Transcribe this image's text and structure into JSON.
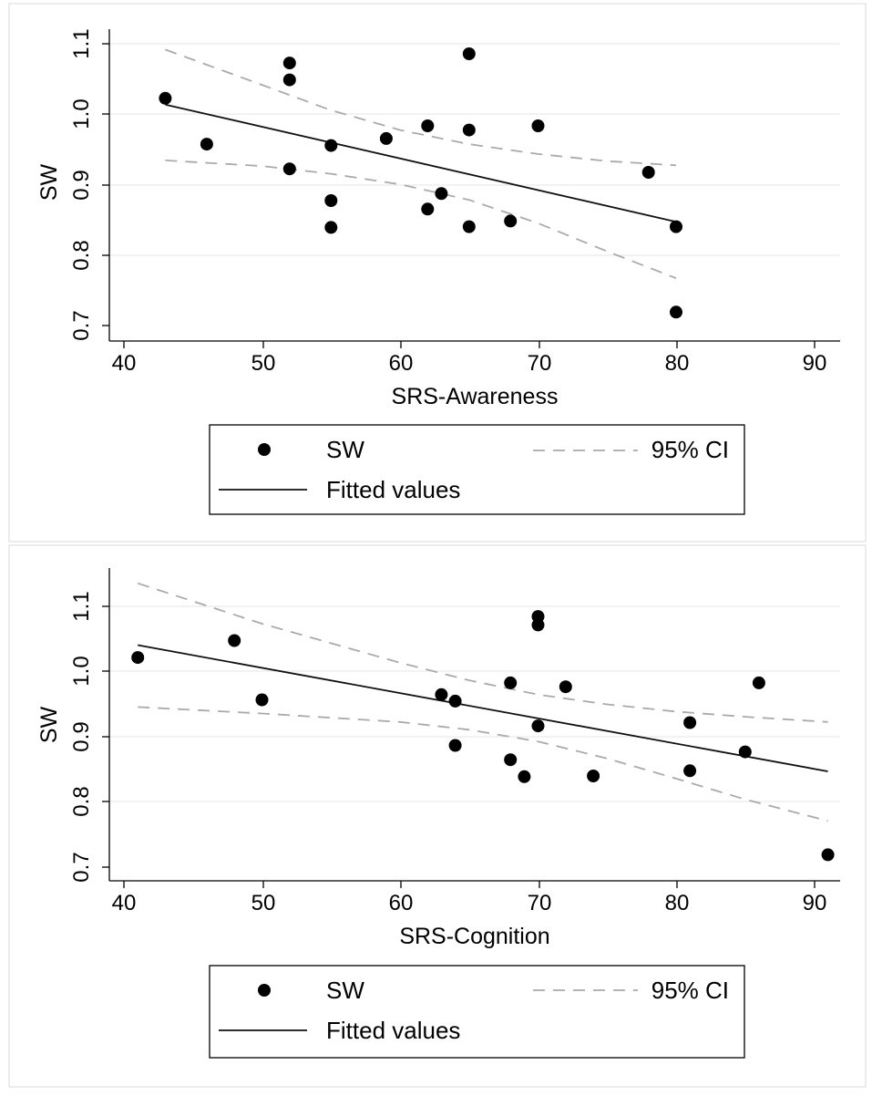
{
  "chart_data": [
    {
      "type": "scatter",
      "xlabel": "SRS-Awareness",
      "ylabel": "SW",
      "xlim": [
        40,
        92
      ],
      "ylim": [
        0.7,
        1.12
      ],
      "xticks": [
        "40",
        "50",
        "60",
        "70",
        "80",
        "90"
      ],
      "yticks": [
        "0.7",
        "0.8",
        "0.9",
        "1.0",
        "1.1"
      ],
      "grid": true,
      "series": [
        {
          "name": "SW",
          "points": [
            [
              43,
              1.022
            ],
            [
              46,
              0.957
            ],
            [
              52,
              1.072
            ],
            [
              52,
              1.048
            ],
            [
              52,
              0.922
            ],
            [
              55,
              0.955
            ],
            [
              55,
              0.877
            ],
            [
              55,
              0.839
            ],
            [
              59,
              0.965
            ],
            [
              62,
              0.983
            ],
            [
              62,
              0.865
            ],
            [
              63,
              0.887
            ],
            [
              65,
              1.085
            ],
            [
              65,
              0.977
            ],
            [
              65,
              0.84
            ],
            [
              68,
              0.848
            ],
            [
              70,
              0.983
            ],
            [
              78,
              0.917
            ],
            [
              80,
              0.84
            ],
            [
              80,
              0.719
            ]
          ]
        },
        {
          "name": "Fitted values",
          "x": [
            43,
            80
          ],
          "y": [
            1.013,
            0.847
          ]
        },
        {
          "name": "95% CI",
          "x": [
            43,
            50,
            55,
            60,
            65,
            70,
            75,
            80
          ],
          "y": [
            1.091,
            1.041,
            1.005,
            0.977,
            0.957,
            0.943,
            0.933,
            0.927
          ]
        },
        {
          "name": "95% CI",
          "x": [
            43,
            50,
            55,
            60,
            65,
            70,
            75,
            80
          ],
          "y": [
            0.934,
            0.926,
            0.915,
            0.9,
            0.878,
            0.845,
            0.805,
            0.767
          ]
        }
      ],
      "legend": {
        "position": "below",
        "items": [
          {
            "label": "SW",
            "kind": "marker"
          },
          {
            "label": "95% CI",
            "kind": "dashed"
          },
          {
            "label": "Fitted values",
            "kind": "solid"
          }
        ]
      }
    },
    {
      "type": "scatter",
      "xlabel": "SRS-Cognition",
      "ylabel": "SW",
      "xlim": [
        39,
        92
      ],
      "ylim": [
        0.7,
        1.16
      ],
      "xticks": [
        "40",
        "50",
        "60",
        "70",
        "80",
        "90"
      ],
      "yticks": [
        "0.7",
        "0.8",
        "0.9",
        "1.0",
        "1.1"
      ],
      "grid": true,
      "series": [
        {
          "name": "SW",
          "points": [
            [
              41,
              1.022
            ],
            [
              48,
              1.048
            ],
            [
              50,
              0.957
            ],
            [
              63,
              0.965
            ],
            [
              64,
              0.955
            ],
            [
              64,
              0.887
            ],
            [
              68,
              0.983
            ],
            [
              68,
              0.865
            ],
            [
              69,
              0.839
            ],
            [
              70,
              1.085
            ],
            [
              70,
              1.072
            ],
            [
              70,
              0.917
            ],
            [
              72,
              0.977
            ],
            [
              74,
              0.84
            ],
            [
              81,
              0.922
            ],
            [
              81,
              0.848
            ],
            [
              85,
              0.877
            ],
            [
              86,
              0.983
            ],
            [
              91,
              0.719
            ]
          ]
        },
        {
          "name": "Fitted values",
          "x": [
            41,
            91
          ],
          "y": [
            1.041,
            0.847
          ]
        },
        {
          "name": "95% CI",
          "x": [
            41,
            50,
            60,
            65,
            70,
            75,
            80,
            85,
            91
          ],
          "y": [
            1.136,
            1.074,
            1.014,
            0.987,
            0.965,
            0.95,
            0.939,
            0.931,
            0.923
          ]
        },
        {
          "name": "95% CI",
          "x": [
            41,
            50,
            60,
            65,
            70,
            75,
            80,
            85,
            91
          ],
          "y": [
            0.946,
            0.936,
            0.923,
            0.911,
            0.893,
            0.867,
            0.836,
            0.804,
            0.771
          ]
        }
      ],
      "legend": {
        "position": "below",
        "items": [
          {
            "label": "SW",
            "kind": "marker"
          },
          {
            "label": "95% CI",
            "kind": "dashed"
          },
          {
            "label": "Fitted values",
            "kind": "solid"
          }
        ]
      }
    }
  ]
}
